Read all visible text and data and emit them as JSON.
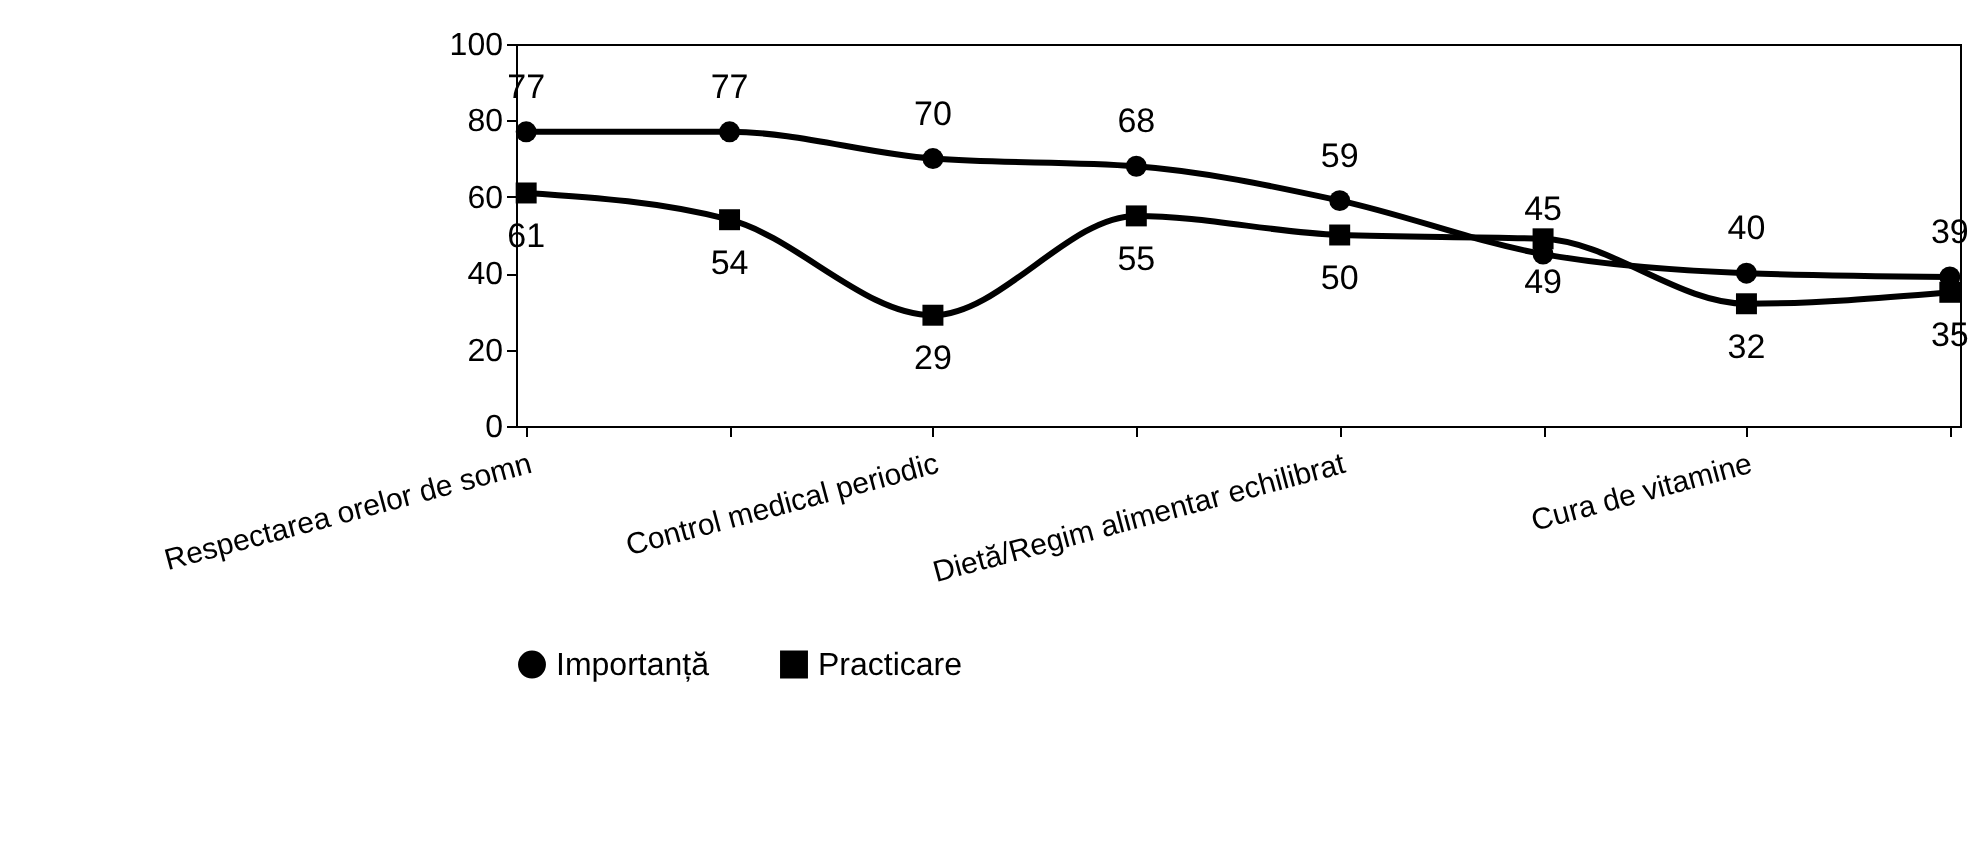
{
  "chart_data": {
    "type": "line",
    "categories": [
      "Respectarea orelor de somn",
      null,
      "Control medical periodic",
      null,
      "Dietă/Regim alimentar echilibrat",
      null,
      "Cura de vitamine",
      null
    ],
    "series": [
      {
        "name": "Importanță",
        "color": "#000000",
        "marker": "circle",
        "values": [
          77,
          77,
          70,
          68,
          59,
          45,
          40,
          39
        ]
      },
      {
        "name": "Practicare",
        "color": "#000000",
        "marker": "square",
        "values": [
          61,
          54,
          29,
          55,
          50,
          49,
          32,
          35
        ]
      }
    ],
    "ylim": [
      0,
      100
    ],
    "yticks": [
      0,
      20,
      40,
      60,
      80,
      100
    ],
    "grid": false,
    "legend": "bottom",
    "data_labels": true,
    "line_style": "solid"
  }
}
